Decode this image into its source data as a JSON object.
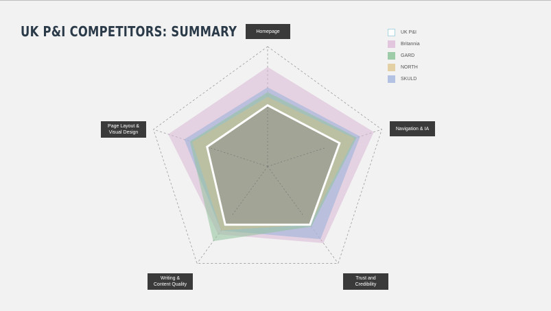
{
  "title": "UK P&I COMPETITORS: SUMMARY",
  "chart_data": {
    "type": "radar",
    "axes": [
      "Homepage",
      "Navigation & IA",
      "Trust and\nCredibility",
      "Writing &\nContent Quality",
      "Page Layout &\nVisual Design"
    ],
    "range": [
      0,
      1
    ],
    "series": [
      {
        "name": "Britannia",
        "values": [
          0.83,
          0.93,
          0.79,
          0.7,
          0.87
        ],
        "color": "#d9b7d4",
        "opacity": 0.55
      },
      {
        "name": "SKULD",
        "values": [
          0.66,
          0.81,
          0.75,
          0.66,
          0.73
        ],
        "color": "#9fb3da",
        "opacity": 0.6
      },
      {
        "name": "GARD",
        "values": [
          0.62,
          0.78,
          0.62,
          0.77,
          0.68
        ],
        "color": "#8fc29a",
        "opacity": 0.55
      },
      {
        "name": "NORTH",
        "values": [
          0.58,
          0.76,
          0.6,
          0.66,
          0.66
        ],
        "color": "#d6c08e",
        "opacity": 0.5
      },
      {
        "name": "UK P&I",
        "values": [
          0.51,
          0.63,
          0.6,
          0.6,
          0.53
        ],
        "color": "#ffffff",
        "opacity": 0.0,
        "outline": true
      }
    ],
    "legend_order": [
      "UK P&I",
      "Britannia",
      "GARD",
      "NORTH",
      "SKULD"
    ],
    "grid_levels": [
      0.5,
      1.0
    ],
    "grid": true,
    "legend_position": "top-right"
  }
}
